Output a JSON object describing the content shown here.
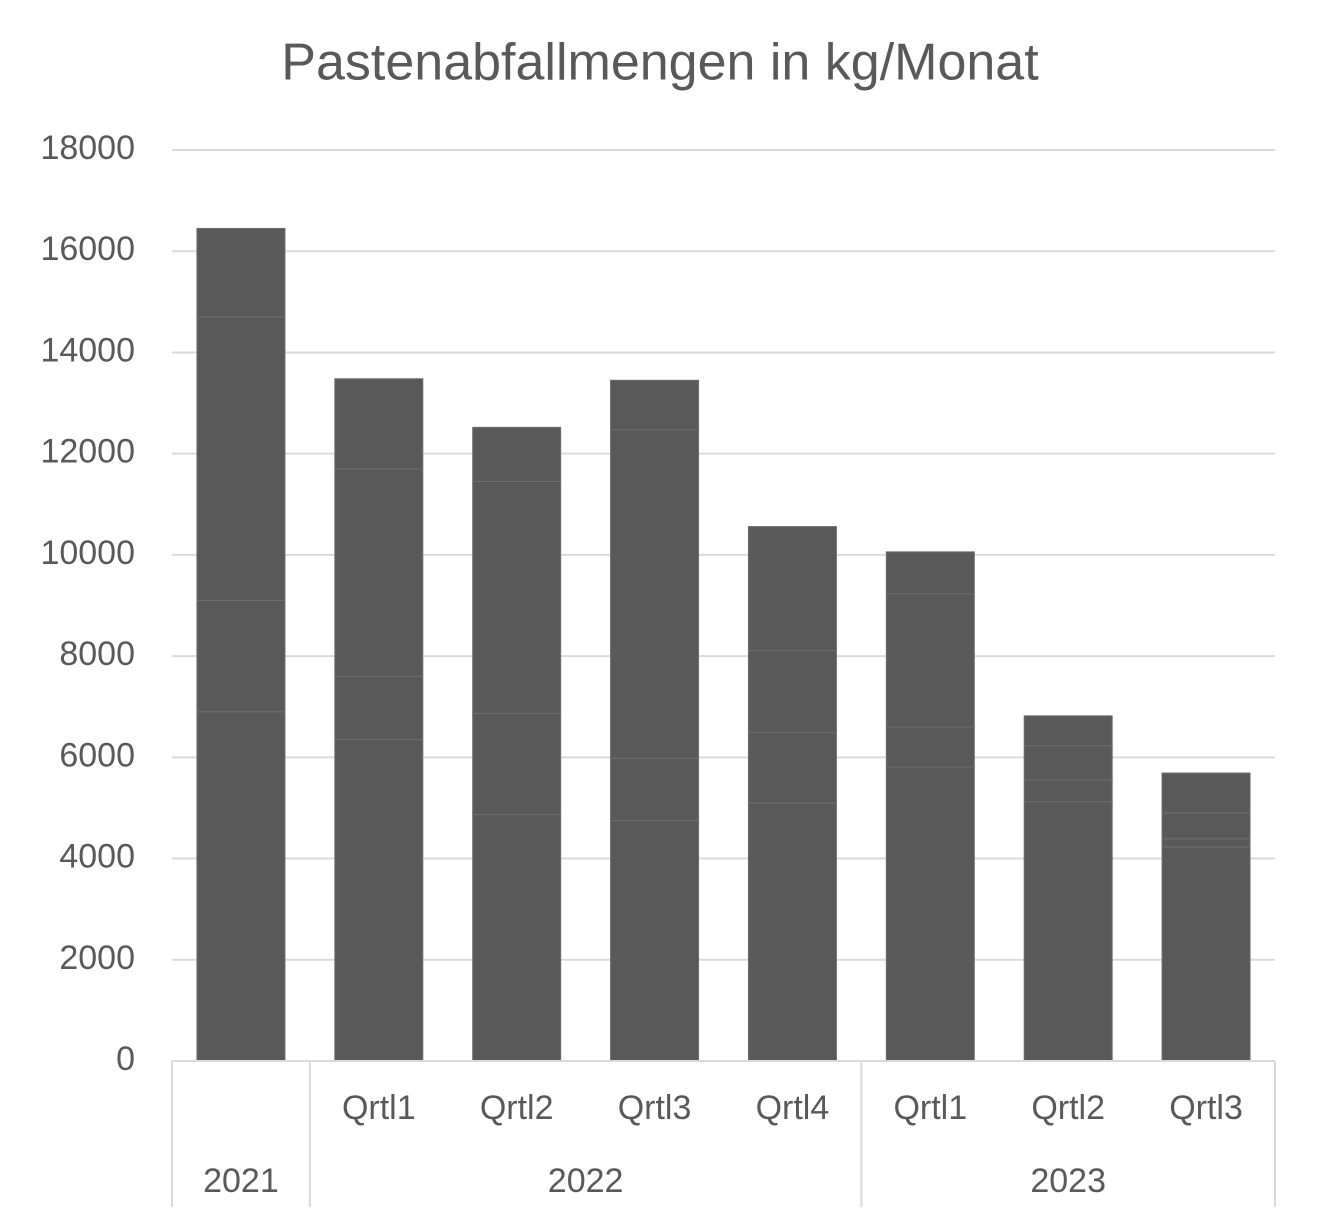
{
  "chart_data": {
    "type": "stacked_bar",
    "title": "Pastenabfallmengen in kg/Monat",
    "categories": [
      null,
      "Qrtl1",
      "Qrtl2",
      "Qrtl3",
      "Qrtl4",
      "Qrtl1",
      "Qrtl2",
      "Qrtl3"
    ],
    "groups": [
      {
        "label": "2021",
        "count": 1
      },
      {
        "label": "2022",
        "count": 4
      },
      {
        "label": "2023",
        "count": 3
      }
    ],
    "series": [
      {
        "color": "#595959",
        "values": [
          6900,
          6350,
          4870,
          4750,
          5100,
          5810,
          5120,
          4230
        ]
      },
      {
        "color": "#595959",
        "values": [
          2200,
          1250,
          2000,
          1230,
          1390,
          790,
          430,
          160
        ]
      },
      {
        "color": "#595959",
        "values": [
          5600,
          4100,
          4580,
          6490,
          1620,
          2630,
          680,
          510
        ]
      },
      {
        "color": "#595959",
        "values": [
          1750,
          1780,
          1070,
          980,
          2450,
          830,
          590,
          790
        ]
      }
    ],
    "segment_border": "#6e6e6e",
    "ylim": [
      0,
      18000
    ],
    "yticks": [
      0,
      2000,
      4000,
      6000,
      8000,
      10000,
      12000,
      14000,
      16000,
      18000
    ],
    "grid": true
  }
}
